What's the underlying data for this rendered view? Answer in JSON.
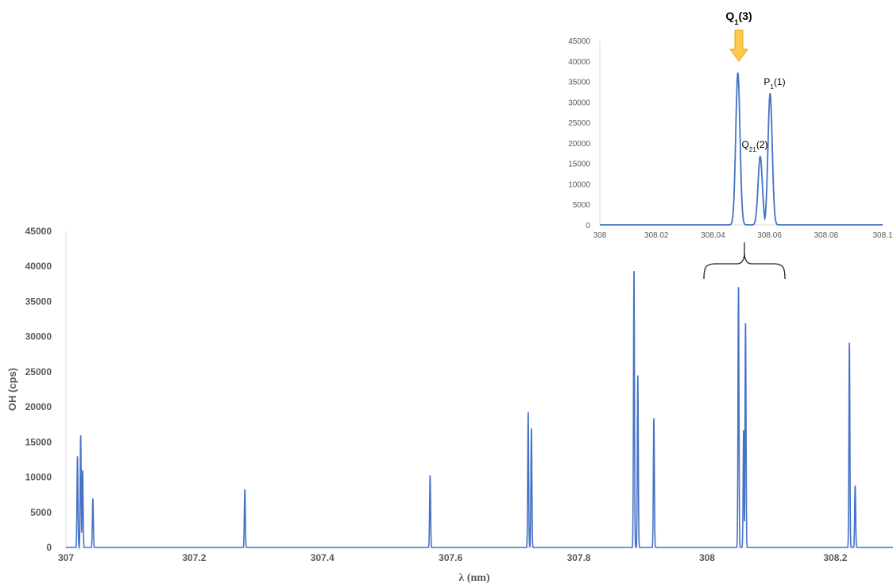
{
  "chart_data": [
    {
      "type": "line",
      "xlabel": "λ (nm)",
      "ylabel": "OH (cps)",
      "xlim": [
        307,
        308.29
      ],
      "ylim": [
        0,
        45000
      ],
      "xticks": [
        "307",
        "307.2",
        "307.4",
        "307.6",
        "307.8",
        "308",
        "308.2"
      ],
      "yticks": [
        "0",
        "5000",
        "10000",
        "15000",
        "20000",
        "25000",
        "30000",
        "35000",
        "40000",
        "45000"
      ],
      "grid": false,
      "color": "#4472c4",
      "peaks": [
        {
          "x": 307.018,
          "y": 13000
        },
        {
          "x": 307.023,
          "y": 16000
        },
        {
          "x": 307.026,
          "y": 11000
        },
        {
          "x": 307.042,
          "y": 6900
        },
        {
          "x": 307.279,
          "y": 8300
        },
        {
          "x": 307.568,
          "y": 10200
        },
        {
          "x": 307.721,
          "y": 19300
        },
        {
          "x": 307.726,
          "y": 17000
        },
        {
          "x": 307.886,
          "y": 39500
        },
        {
          "x": 307.892,
          "y": 24500
        },
        {
          "x": 307.917,
          "y": 18400
        },
        {
          "x": 308.049,
          "y": 37200
        },
        {
          "x": 308.057,
          "y": 16700
        },
        {
          "x": 308.06,
          "y": 32000
        },
        {
          "x": 308.222,
          "y": 29200
        },
        {
          "x": 308.231,
          "y": 8800
        }
      ]
    },
    {
      "type": "line",
      "xlim": [
        308,
        308.1
      ],
      "ylim": [
        0,
        45000
      ],
      "xticks": [
        "308",
        "308.02",
        "308.04",
        "308.06",
        "308.08",
        "308.1"
      ],
      "yticks": [
        "0",
        "5000",
        "10000",
        "15000",
        "20000",
        "25000",
        "30000",
        "35000",
        "40000",
        "45000"
      ],
      "grid": false,
      "color": "#4472c4",
      "peaks": [
        {
          "x": 308.0488,
          "y": 37000
        },
        {
          "x": 308.0567,
          "y": 16700
        },
        {
          "x": 308.0602,
          "y": 32000
        }
      ],
      "annotations": [
        {
          "id": "q1",
          "main": "Q",
          "sub": "1",
          "tail": "(3)",
          "x": 308.0488
        },
        {
          "id": "p1",
          "main": "P",
          "sub": "1",
          "tail": "(1)",
          "x": 308.0602
        },
        {
          "id": "q21",
          "main": "Q",
          "sub": "21",
          "tail": "(2)",
          "x": 308.0567
        }
      ]
    }
  ]
}
